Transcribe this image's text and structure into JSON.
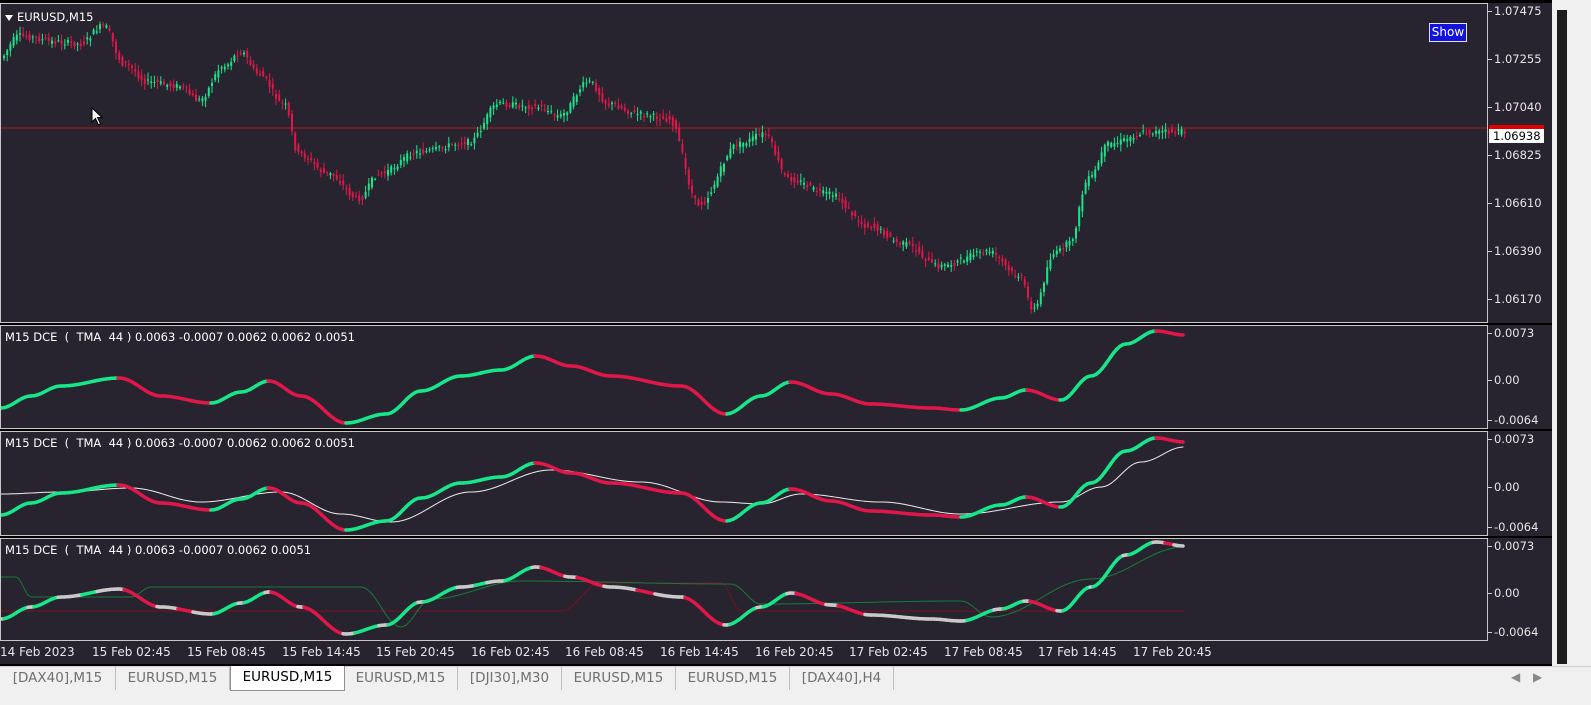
{
  "main": {
    "symbol_title": "EURUSD,M15",
    "show_button": "Show",
    "current_price": "1.06938",
    "price_ticks": [
      "1.07475",
      "1.07255",
      "1.07040",
      "1.06825",
      "1.06610",
      "1.06390",
      "1.06170"
    ]
  },
  "indicators": [
    {
      "title": "M15 DCE  (  TMA  44 ) 0.0063 -0.0007 0.0062 0.0062 0.0051",
      "ticks": [
        "0.0073",
        "0.00",
        "-0.0064"
      ]
    },
    {
      "title": "M15 DCE  (  TMA  44 ) 0.0063 -0.0007 0.0062 0.0062 0.0051",
      "ticks": [
        "0.0073",
        "0.00",
        "-0.0064"
      ]
    },
    {
      "title": "M15 DCE  (  TMA  44 ) 0.0063 -0.0007 0.0062 0.0051",
      "ticks": [
        "0.0073",
        "0.00",
        "-0.0064"
      ]
    }
  ],
  "time_axis": [
    "14 Feb 2023",
    "15 Feb 02:45",
    "15 Feb 08:45",
    "15 Feb 14:45",
    "15 Feb 20:45",
    "16 Feb 02:45",
    "16 Feb 08:45",
    "16 Feb 14:45",
    "16 Feb 20:45",
    "17 Feb 02:45",
    "17 Feb 08:45",
    "17 Feb 14:45",
    "17 Feb 20:45"
  ],
  "tabs": [
    "[DAX40],M15",
    "EURUSD,M15",
    "EURUSD,M15",
    "EURUSD,M15",
    "[DJI30],M30",
    "EURUSD,M15",
    "EURUSD,M15",
    "[DAX40],H4"
  ],
  "active_tab_index": 2,
  "colors": {
    "background": "#27232f",
    "bull": "#19e58a",
    "bear": "#e0174a",
    "neutral": "#c9c9c9",
    "price_line": "#c01818"
  }
}
